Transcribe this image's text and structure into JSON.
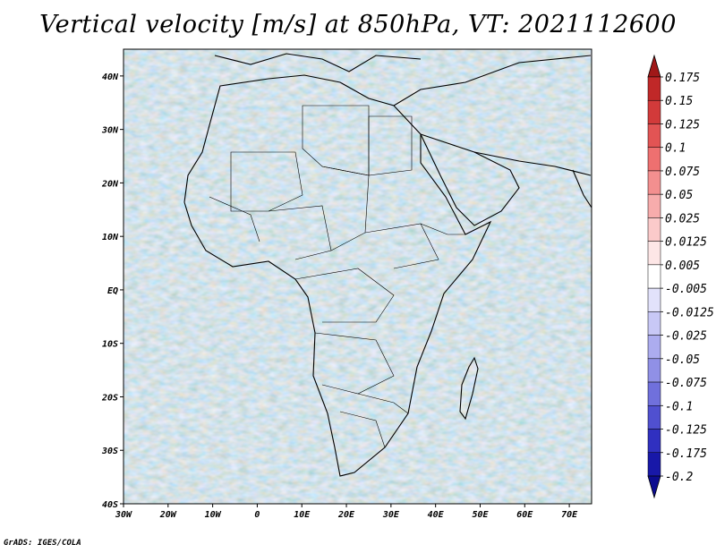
{
  "title": "Vertical velocity [m/s] at 850hPa, VT: 2021112600",
  "footer": "GrADS: IGES/COLA",
  "map": {
    "lon_labels": [
      "30W",
      "20W",
      "10W",
      "0",
      "10E",
      "20E",
      "30E",
      "40E",
      "50E",
      "60E",
      "70E"
    ],
    "lat_labels": [
      "40N",
      "30N",
      "20N",
      "10N",
      "EQ",
      "10S",
      "20S",
      "30S",
      "40S"
    ],
    "lon_range": [
      -30,
      75
    ],
    "lat_range": [
      -40,
      45
    ]
  },
  "colorbar": {
    "labels": [
      "0.175",
      "0.15",
      "0.125",
      "0.1",
      "0.075",
      "0.05",
      "0.025",
      "0.0125",
      "0.005",
      "-0.005",
      "-0.0125",
      "-0.025",
      "-0.05",
      "-0.075",
      "-0.1",
      "-0.125",
      "-0.175",
      "-0.2"
    ],
    "colors": [
      "#a01818",
      "#c02828",
      "#d23a3a",
      "#e25454",
      "#ee7070",
      "#f38f8f",
      "#f7acac",
      "#fbcaca",
      "#fde6e6",
      "#ffffff",
      "#e2e2fb",
      "#c8c8f6",
      "#acacef",
      "#9090e6",
      "#7070dc",
      "#5050d0",
      "#3030c0",
      "#1818a8",
      "#0c0c90"
    ]
  }
}
